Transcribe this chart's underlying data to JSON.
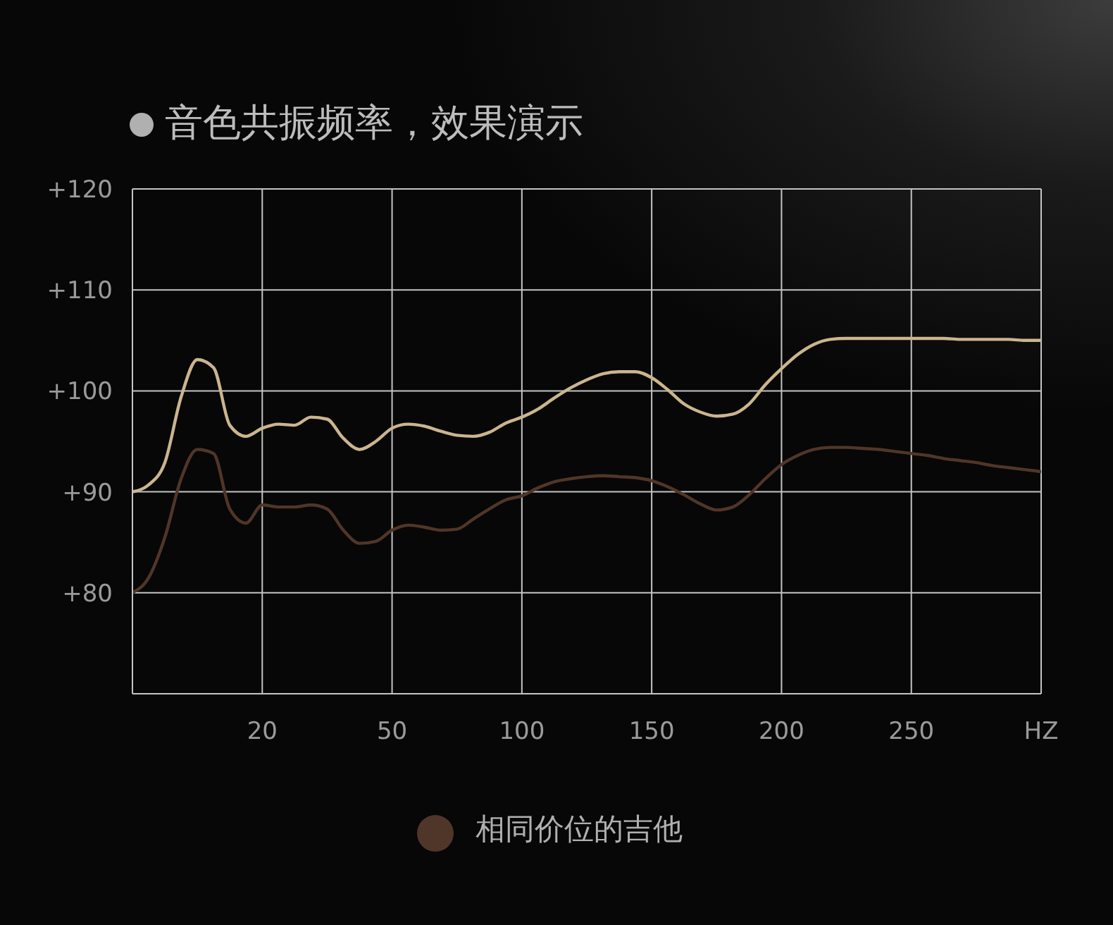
{
  "chart_data": {
    "type": "line",
    "title": "音色共振频率，效果演示",
    "categories": [
      null,
      null,
      null,
      null,
      null,
      null,
      null,
      null,
      "20",
      null,
      null,
      null,
      null,
      null,
      null,
      null,
      "50",
      null,
      null,
      null,
      null,
      null,
      null,
      null,
      "100",
      null,
      null,
      null,
      null,
      null,
      null,
      null,
      "150",
      null,
      null,
      null,
      null,
      null,
      null,
      null,
      "200",
      null,
      null,
      null,
      null,
      null,
      null,
      null,
      "250",
      null,
      null,
      null,
      null,
      null,
      null,
      null,
      "HZ"
    ],
    "series": [
      {
        "name": "相同价位的吉他",
        "color": "#503628",
        "values": [
          80.0,
          81.5,
          85.5,
          91.3,
          94.2,
          93.8,
          88.3,
          86.9,
          88.7,
          88.5,
          88.5,
          88.7,
          88.3,
          86.2,
          84.9,
          85.1,
          86.2,
          86.7,
          86.5,
          86.2,
          86.3,
          87.3,
          88.3,
          89.2,
          89.6,
          90.4,
          91.0,
          91.3,
          91.5,
          91.6,
          91.5,
          91.4,
          91.1,
          90.5,
          89.7,
          88.8,
          88.2,
          88.5,
          89.7,
          91.3,
          92.7,
          93.6,
          94.2,
          94.4,
          94.4,
          94.3,
          94.2,
          94.0,
          93.8,
          93.6,
          93.3,
          93.1,
          92.9,
          92.6,
          92.4,
          92.2,
          92.0
        ]
      },
      {
        "color": "#cbb58d",
        "values": [
          90.0,
          90.7,
          92.9,
          99.4,
          103.1,
          102.3,
          96.6,
          95.5,
          96.3,
          96.7,
          96.6,
          97.4,
          97.2,
          95.3,
          94.2,
          95.0,
          96.3,
          96.7,
          96.5,
          96.0,
          95.6,
          95.5,
          95.9,
          96.8,
          97.4,
          98.2,
          99.3,
          100.3,
          101.1,
          101.7,
          101.9,
          101.9,
          101.3,
          100.1,
          98.7,
          97.9,
          97.5,
          97.7,
          98.7,
          100.6,
          102.2,
          103.6,
          104.6,
          105.1,
          105.2,
          105.2,
          105.2,
          105.2,
          105.2,
          105.2,
          105.2,
          105.1,
          105.1,
          105.1,
          105.1,
          105.0,
          105.0
        ]
      }
    ],
    "ylim": [
      70,
      120
    ],
    "yticks": [
      {
        "value": 80,
        "label": "+80"
      },
      {
        "value": 90,
        "label": "+90"
      },
      {
        "value": 100,
        "label": "+100"
      },
      {
        "value": 110,
        "label": "+110"
      },
      {
        "value": 120,
        "label": "+120"
      }
    ],
    "grid": true,
    "legend": "bottom"
  }
}
